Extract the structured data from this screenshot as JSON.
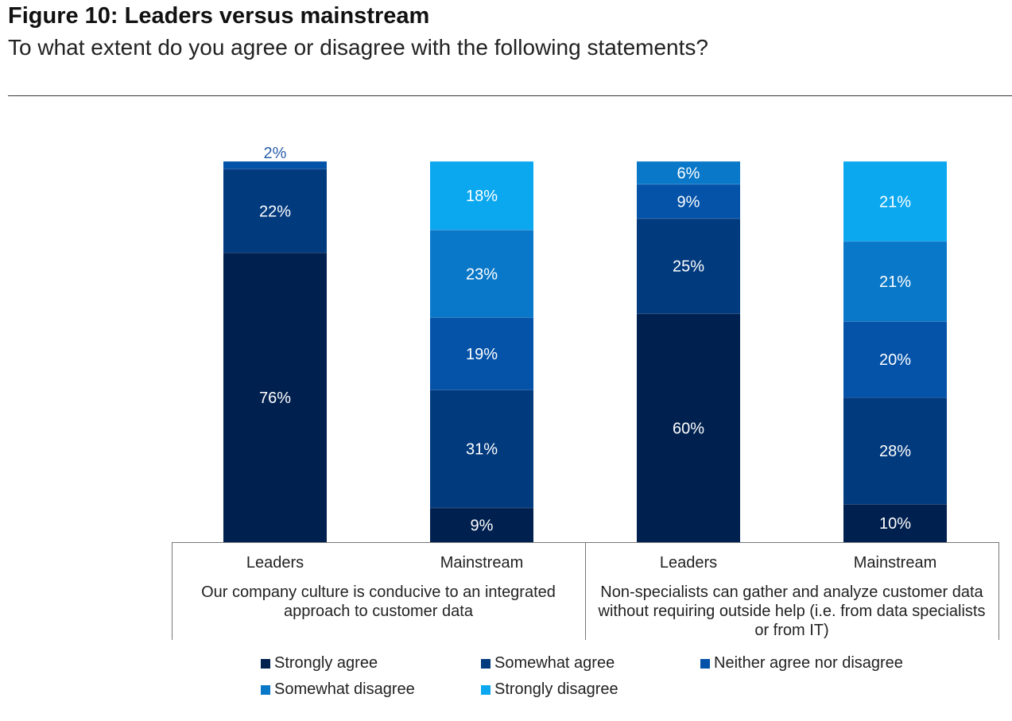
{
  "header": {
    "title": "Figure 10: Leaders versus mainstream",
    "subtitle": "To what extent do you agree or disagree with the following statements?"
  },
  "chart_data": {
    "type": "bar",
    "stacked": true,
    "categories": [
      "Leaders",
      "Mainstream",
      "Leaders",
      "Mainstream"
    ],
    "groups": [
      {
        "label": "Our company culture is conducive to an integrated approach to customer data",
        "lines": [
          "Our company culture is conducive to an integrated",
          "approach to customer data"
        ]
      },
      {
        "label": "Non-specialists can gather and analyze customer data without requiring outside help (i.e. from data specialists or from IT)",
        "lines": [
          "Non-specialists can gather and analyze customer data",
          "without requiring outside help (i.e. from data specialists",
          "or from IT)"
        ]
      }
    ],
    "series": [
      {
        "name": "Strongly agree",
        "color": "#00204f",
        "values": [
          76,
          9,
          60,
          10
        ]
      },
      {
        "name": "Somewhat agree",
        "color": "#023a7e",
        "values": [
          22,
          31,
          25,
          28
        ]
      },
      {
        "name": "Neither agree nor disagree",
        "color": "#0453a8",
        "values": [
          2,
          19,
          9,
          20
        ]
      },
      {
        "name": "Somewhat disagree",
        "color": "#0a78c8",
        "values": [
          0,
          23,
          6,
          21
        ]
      },
      {
        "name": "Strongly disagree",
        "color": "#0ba8f0",
        "values": [
          0,
          18,
          0,
          21
        ]
      }
    ],
    "data_labels": [
      [
        "76%",
        "22%",
        "2%",
        "",
        ""
      ],
      [
        "9%",
        "31%",
        "19%",
        "23%",
        "18%"
      ],
      [
        "60%",
        "25%",
        "9%",
        "6%",
        ""
      ],
      [
        "10%",
        "28%",
        "20%",
        "21%",
        "21%"
      ]
    ],
    "ylim": [
      0,
      100
    ],
    "grid": false,
    "legend_position": "bottom"
  }
}
